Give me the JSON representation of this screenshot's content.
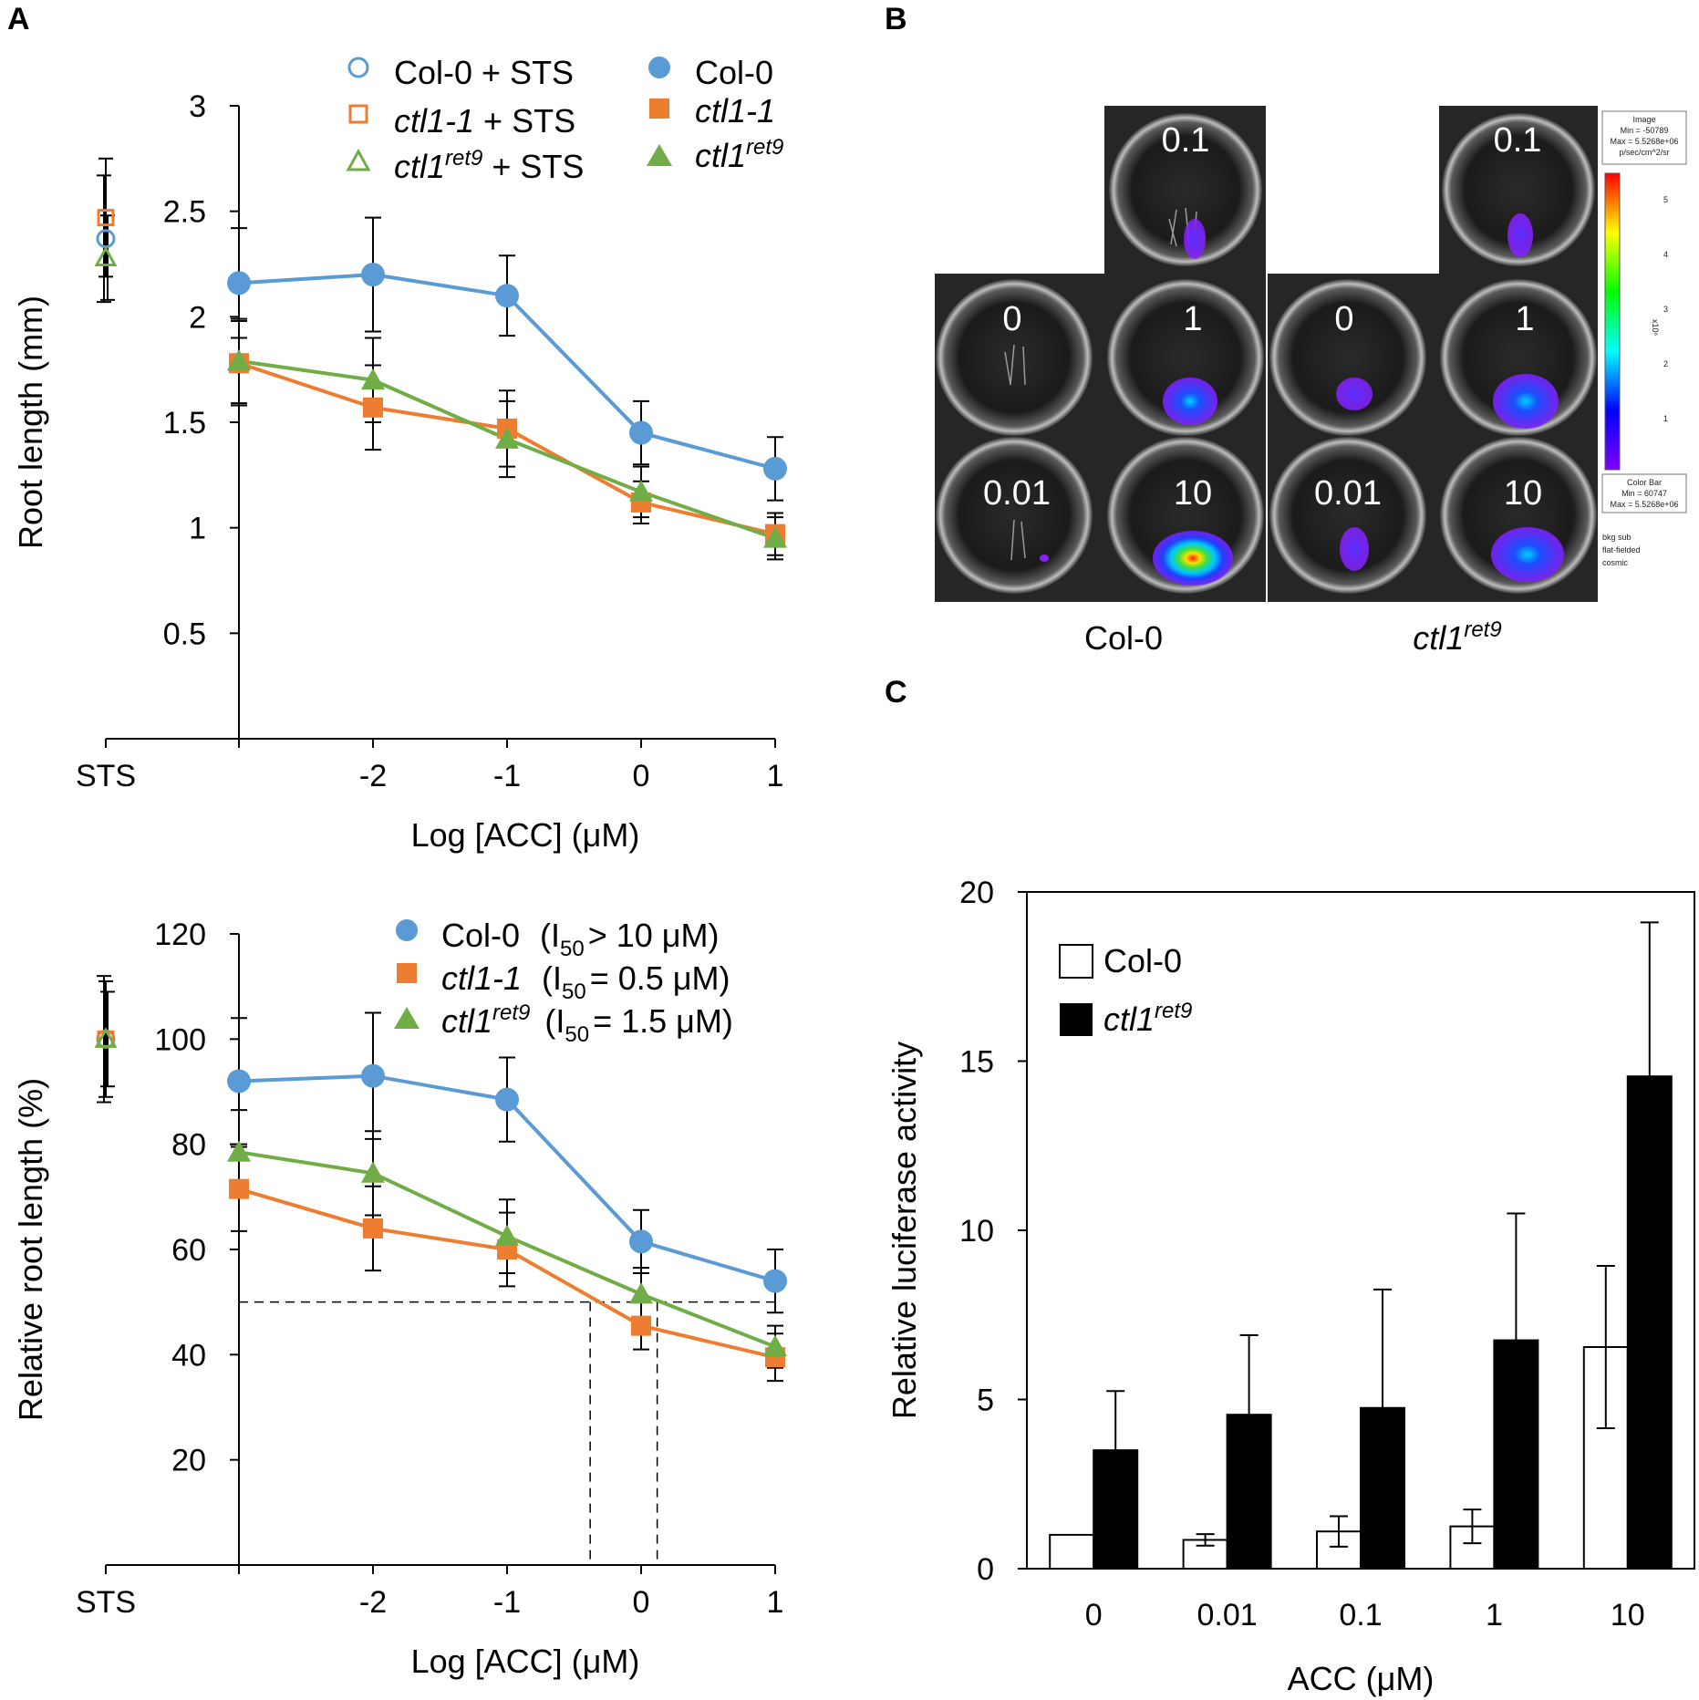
{
  "panels": {
    "a": "A",
    "b": "B",
    "c": "C"
  },
  "colors": {
    "col0": "#5b9bd5",
    "ctl11": "#ed7d31",
    "ret9": "#70ad47",
    "black": "#000000"
  },
  "chart_data": [
    {
      "id": "A-top",
      "type": "line",
      "xlabel": "Log [ACC] (μM)",
      "ylabel": "Root length (mm)",
      "ylim": [
        0,
        3
      ],
      "yticks": [
        "0.5",
        "1",
        "1.5",
        "2",
        "2.5",
        "3"
      ],
      "xticks": [
        "STS",
        "-2",
        "-1",
        "0",
        "1"
      ],
      "x": [
        -3,
        -2,
        -1,
        0,
        1
      ],
      "series": [
        {
          "name": "Col-0",
          "marker": "circle",
          "values": [
            2.16,
            2.2,
            2.1,
            1.45,
            1.28
          ],
          "errors": [
            0.26,
            0.27,
            0.19,
            0.15,
            0.15
          ]
        },
        {
          "name": "ctl1-1",
          "marker": "square",
          "values": [
            1.78,
            1.57,
            1.47,
            1.12,
            0.97
          ],
          "errors": [
            0.2,
            0.2,
            0.18,
            0.1,
            0.1
          ]
        },
        {
          "name": "ctl1ret9",
          "marker": "triangle",
          "values": [
            1.79,
            1.7,
            1.42,
            1.17,
            0.95
          ],
          "errors": [
            0.2,
            0.2,
            0.18,
            0.12,
            0.1
          ]
        }
      ],
      "sts": [
        {
          "name": "Col-0 + STS",
          "value": 2.37,
          "error": 0.3
        },
        {
          "name": "ctl1-1 + STS",
          "value": 2.47,
          "error": 0.28
        },
        {
          "name": "ctl1ret9 + STS",
          "value": 2.28,
          "error": 0.2
        }
      ]
    },
    {
      "id": "A-bottom",
      "type": "line",
      "xlabel": "Log [ACC] (μM)",
      "ylabel": "Relative root length (%)",
      "ylim": [
        0,
        120
      ],
      "yticks": [
        "20",
        "40",
        "60",
        "80",
        "100",
        "120"
      ],
      "xticks": [
        "STS",
        "-2",
        "-1",
        "0",
        "1"
      ],
      "x": [
        -3,
        -2,
        -1,
        0,
        1
      ],
      "threshold": 50,
      "i50_x": [
        -0.38,
        0.12
      ],
      "series": [
        {
          "name": "Col-0",
          "i50": "(I50 > 10 μM)",
          "marker": "circle",
          "values": [
            92,
            93,
            88.5,
            61.5,
            54
          ],
          "errors": [
            12,
            12,
            8,
            6,
            6
          ]
        },
        {
          "name": "ctl1-1",
          "i50": "(I50 = 0.5 μM)",
          "marker": "square",
          "values": [
            71.5,
            64,
            60,
            45.5,
            39.5
          ],
          "errors": [
            8,
            8,
            7,
            4.5,
            4.5
          ]
        },
        {
          "name": "ctl1ret9",
          "i50": "(I50 = 1.5 μM)",
          "marker": "triangle",
          "values": [
            78.5,
            74.5,
            62.5,
            51.5,
            41.5
          ],
          "errors": [
            8,
            8,
            7,
            5,
            4
          ]
        }
      ],
      "sts": [
        {
          "name": "Col-0 + STS",
          "value": 100,
          "error": 12
        },
        {
          "name": "ctl1-1 + STS",
          "value": 100,
          "error": 11
        },
        {
          "name": "ctl1ret9 + STS",
          "value": 100,
          "error": 9
        }
      ]
    },
    {
      "id": "C",
      "type": "bar",
      "xlabel": "ACC (μM)",
      "ylabel": "Relative luciferase activity",
      "ylim": [
        0,
        20
      ],
      "yticks": [
        "0",
        "5",
        "10",
        "15",
        "20"
      ],
      "categories": [
        "0",
        "0.01",
        "0.1",
        "1",
        "10"
      ],
      "series": [
        {
          "name": "Col-0",
          "fill": "#ffffff",
          "values": [
            1.0,
            0.85,
            1.1,
            1.25,
            6.55
          ],
          "errors": [
            0,
            0.17,
            0.45,
            0.5,
            2.4
          ]
        },
        {
          "name": "ctl1ret9",
          "fill": "#000000",
          "values": [
            3.5,
            4.55,
            4.75,
            6.75,
            14.55
          ],
          "errors": [
            1.75,
            2.35,
            3.5,
            3.75,
            4.55
          ]
        }
      ]
    }
  ],
  "legendA_top": {
    "col0_sts": "Col-0 + STS",
    "ctl11_sts_name": "ctl1-1",
    "ret9_sts_base": "ctl1",
    "ret9_sts_sup": "ret9",
    "sts_suffix": "+ STS",
    "col0": "Col-0",
    "ctl11": "ctl1-1",
    "ret9_base": "ctl1",
    "ret9_sup": "ret9"
  },
  "legendA_bottom": {
    "col0": "Col-0",
    "col0_pre": "(I",
    "col0_sub": "50",
    "col0_post": "> 10 μM)",
    "ctl11": "ctl1-1",
    "ctl11_pre": "(I",
    "ctl11_sub": "50",
    "ctl11_post": "= 0.5 μM)",
    "ret9_base": "ctl1",
    "ret9_sup": "ret9",
    "ret9_pre": "(I",
    "ret9_sub": "50",
    "ret9_post": "= 1.5 μM)"
  },
  "legendC": {
    "col0": "Col-0",
    "ret9_base": "ctl1",
    "ret9_sup": "ret9"
  },
  "panelB": {
    "well_labels": [
      "0.1",
      "0",
      "1",
      "0.01",
      "10"
    ],
    "caption_left": "Col-0",
    "caption_right_base": "ctl1",
    "caption_right_sup": "ret9",
    "colorbar_text": {
      "image": "Image",
      "min": "Min = -50789",
      "max": "Max = 5.5268e+06",
      "unit": "p/sec/cm^2/sr",
      "ticks": [
        "5",
        "4",
        "3",
        "2",
        "1"
      ],
      "exp": "x10⁶",
      "cb_title": "Color Bar",
      "cb_min": "Min = 60747",
      "cb_max": "Max = 5.5268e+06",
      "notes": [
        "bkg sub",
        "flat-fielded",
        "cosmic"
      ]
    }
  }
}
